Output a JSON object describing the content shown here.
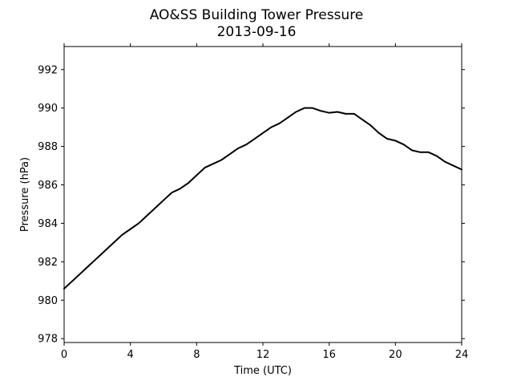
{
  "chart_data": {
    "type": "line",
    "title": "AO&SS Building Tower Pressure",
    "subtitle": "2013-09-16",
    "xlabel": "Time (UTC)",
    "ylabel": "Pressure (hPa)",
    "xlim": [
      0,
      24
    ],
    "ylim": [
      977.8,
      993.2
    ],
    "xticks": [
      0,
      4,
      8,
      12,
      16,
      20,
      24
    ],
    "yticks": [
      978,
      980,
      982,
      984,
      986,
      988,
      990,
      992
    ],
    "grid": false,
    "line_color": "#000000",
    "series": [
      {
        "x": [
          0,
          0.5,
          1,
          1.5,
          2,
          2.5,
          3,
          3.5,
          4,
          4.5,
          5,
          5.5,
          6,
          6.5,
          7,
          7.5,
          8,
          8.5,
          9,
          9.5,
          10,
          10.5,
          11,
          11.5,
          12,
          12.5,
          13,
          13.5,
          14,
          14.5,
          15,
          15.5,
          16,
          16.5,
          17,
          17.5,
          18,
          18.5,
          19,
          19.5,
          20,
          20.5,
          21,
          21.5,
          22,
          22.5,
          23,
          23.5,
          24
        ],
        "y": [
          980.6,
          981.0,
          981.4,
          981.8,
          982.2,
          982.6,
          983.0,
          983.4,
          983.7,
          984.0,
          984.4,
          984.8,
          985.2,
          985.6,
          985.8,
          986.1,
          986.5,
          986.9,
          987.1,
          987.3,
          987.6,
          987.9,
          988.1,
          988.4,
          988.7,
          989.0,
          989.2,
          989.5,
          989.8,
          990.0,
          990.0,
          989.85,
          989.75,
          989.8,
          989.7,
          989.7,
          989.4,
          989.1,
          988.7,
          988.4,
          988.3,
          988.1,
          987.8,
          987.7,
          987.7,
          987.5,
          987.2,
          987.0,
          986.8
        ]
      }
    ]
  }
}
